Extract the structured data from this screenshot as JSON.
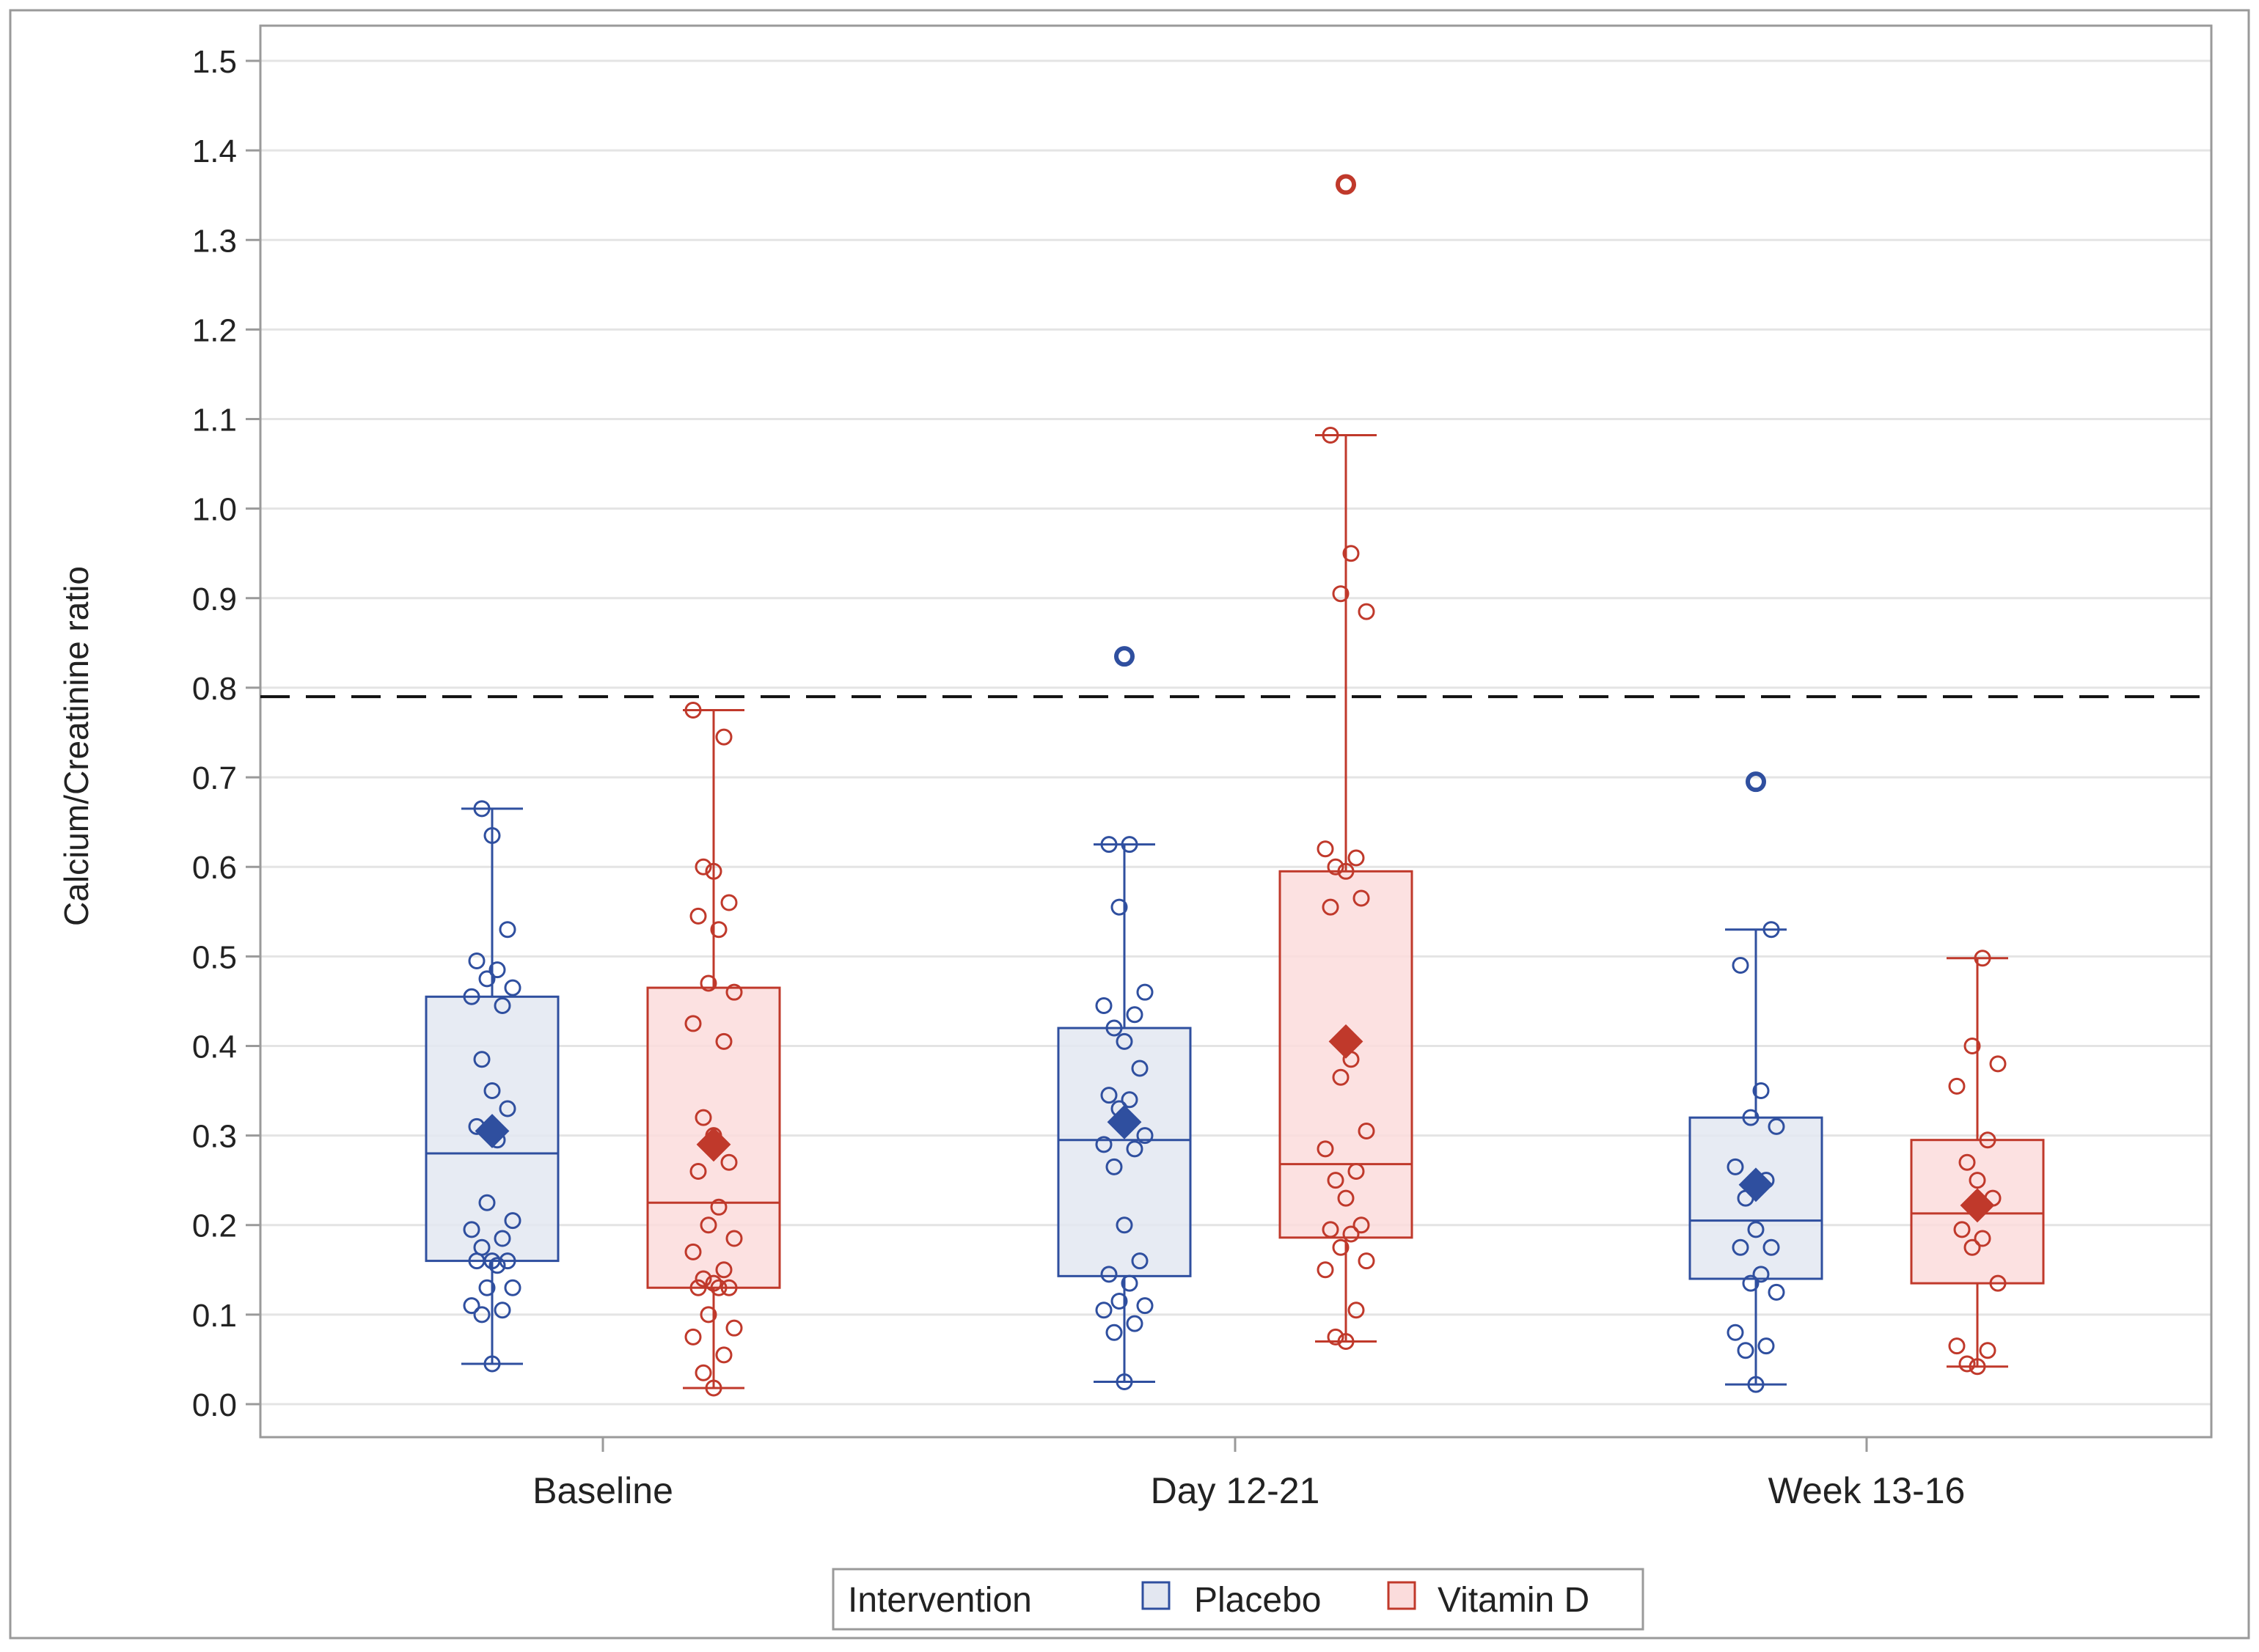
{
  "chart_data": {
    "type": "box",
    "title": "",
    "ylabel": "Calcium/Creatinine ratio",
    "xlabel": "",
    "ylim": [
      0.0,
      1.5
    ],
    "yticks": [
      "0.0",
      "0.1",
      "0.2",
      "0.3",
      "0.4",
      "0.5",
      "0.6",
      "0.7",
      "0.8",
      "0.9",
      "1.0",
      "1.1",
      "1.2",
      "1.3",
      "1.4",
      "1.5"
    ],
    "grid": true,
    "reference_line": {
      "value": 0.79,
      "style": "dashed"
    },
    "categories": [
      "Baseline",
      "Day 12-21",
      "Week 13-16"
    ],
    "legend": {
      "title": "Intervention",
      "placement": "bottom",
      "entries": [
        "Placebo",
        "Vitamin D"
      ]
    },
    "series": [
      {
        "name": "Placebo",
        "color": "#2f4f9f",
        "fill": "#e3e7f1",
        "boxes": [
          {
            "q1": 0.16,
            "median": 0.28,
            "q3": 0.455,
            "whisker_low": 0.045,
            "whisker_high": 0.665,
            "mean": 0.305,
            "points": [
              0.045,
              0.1,
              0.105,
              0.11,
              0.13,
              0.13,
              0.155,
              0.16,
              0.16,
              0.16,
              0.175,
              0.185,
              0.195,
              0.205,
              0.225,
              0.295,
              0.31,
              0.33,
              0.35,
              0.385,
              0.445,
              0.455,
              0.465,
              0.475,
              0.485,
              0.495,
              0.53,
              0.635,
              0.665
            ],
            "outliers": []
          },
          {
            "q1": 0.143,
            "median": 0.295,
            "q3": 0.42,
            "whisker_low": 0.025,
            "whisker_high": 0.625,
            "mean": 0.315,
            "points": [
              0.025,
              0.08,
              0.09,
              0.105,
              0.11,
              0.115,
              0.135,
              0.145,
              0.16,
              0.2,
              0.265,
              0.285,
              0.29,
              0.3,
              0.33,
              0.34,
              0.345,
              0.375,
              0.405,
              0.42,
              0.435,
              0.445,
              0.46,
              0.555,
              0.625,
              0.625
            ],
            "outliers": [
              0.835
            ]
          },
          {
            "q1": 0.14,
            "median": 0.205,
            "q3": 0.32,
            "whisker_low": 0.022,
            "whisker_high": 0.53,
            "mean": 0.245,
            "points": [
              0.022,
              0.06,
              0.065,
              0.08,
              0.125,
              0.135,
              0.145,
              0.175,
              0.175,
              0.195,
              0.23,
              0.25,
              0.265,
              0.31,
              0.32,
              0.35,
              0.49,
              0.53
            ],
            "outliers": [
              0.695
            ]
          }
        ]
      },
      {
        "name": "Vitamin D",
        "color": "#c0392b",
        "fill": "#fbdcdc",
        "boxes": [
          {
            "q1": 0.13,
            "median": 0.225,
            "q3": 0.465,
            "whisker_low": 0.018,
            "whisker_high": 0.775,
            "mean": 0.29,
            "points": [
              0.018,
              0.035,
              0.055,
              0.075,
              0.085,
              0.1,
              0.13,
              0.13,
              0.13,
              0.135,
              0.14,
              0.15,
              0.17,
              0.185,
              0.2,
              0.22,
              0.26,
              0.27,
              0.3,
              0.32,
              0.405,
              0.425,
              0.46,
              0.47,
              0.53,
              0.545,
              0.56,
              0.595,
              0.6,
              0.745,
              0.775
            ],
            "outliers": []
          },
          {
            "q1": 0.186,
            "median": 0.268,
            "q3": 0.595,
            "whisker_low": 0.07,
            "whisker_high": 1.082,
            "mean": 0.405,
            "points": [
              0.07,
              0.075,
              0.105,
              0.15,
              0.16,
              0.175,
              0.19,
              0.195,
              0.2,
              0.23,
              0.25,
              0.26,
              0.285,
              0.305,
              0.365,
              0.385,
              0.555,
              0.565,
              0.595,
              0.6,
              0.61,
              0.62,
              0.885,
              0.905,
              0.95,
              1.082
            ],
            "outliers": [
              1.362
            ]
          },
          {
            "q1": 0.135,
            "median": 0.213,
            "q3": 0.295,
            "whisker_low": 0.042,
            "whisker_high": 0.498,
            "mean": 0.222,
            "points": [
              0.042,
              0.045,
              0.06,
              0.065,
              0.135,
              0.175,
              0.185,
              0.195,
              0.23,
              0.25,
              0.27,
              0.295,
              0.355,
              0.38,
              0.4,
              0.498
            ],
            "outliers": []
          }
        ]
      }
    ]
  }
}
